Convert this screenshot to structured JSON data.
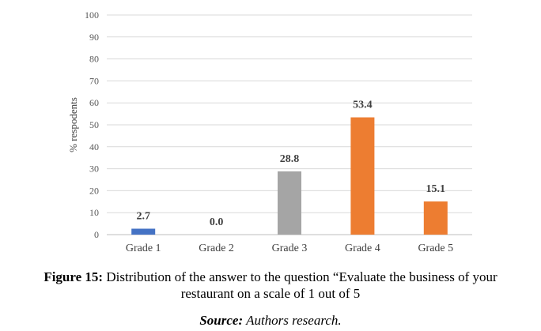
{
  "chart_data": {
    "type": "bar",
    "categories": [
      "Grade 1",
      "Grade 2",
      "Grade 3",
      "Grade 4",
      "Grade 5"
    ],
    "values": [
      2.7,
      0.0,
      28.8,
      53.4,
      15.1
    ],
    "data_labels": [
      "2.7",
      "0.0",
      "28.8",
      "53.4",
      "15.1"
    ],
    "colors": [
      "#4472C4",
      "#4472C4",
      "#A5A5A5",
      "#ED7D31",
      "#ED7D31"
    ],
    "ylabel": "% respodents",
    "xlabel": "",
    "ylim": [
      0,
      100
    ],
    "yticks": [
      0,
      10,
      20,
      30,
      40,
      50,
      60,
      70,
      80,
      90,
      100
    ],
    "grid": true,
    "legend": "none"
  },
  "caption": {
    "label": "Figure 15:",
    "line1": " Distribution of the answer to the question “Evaluate the business of your",
    "line2": "restaurant on a scale of 1 out of 5"
  },
  "source": {
    "label": "Source:",
    "text": " Authors research."
  }
}
